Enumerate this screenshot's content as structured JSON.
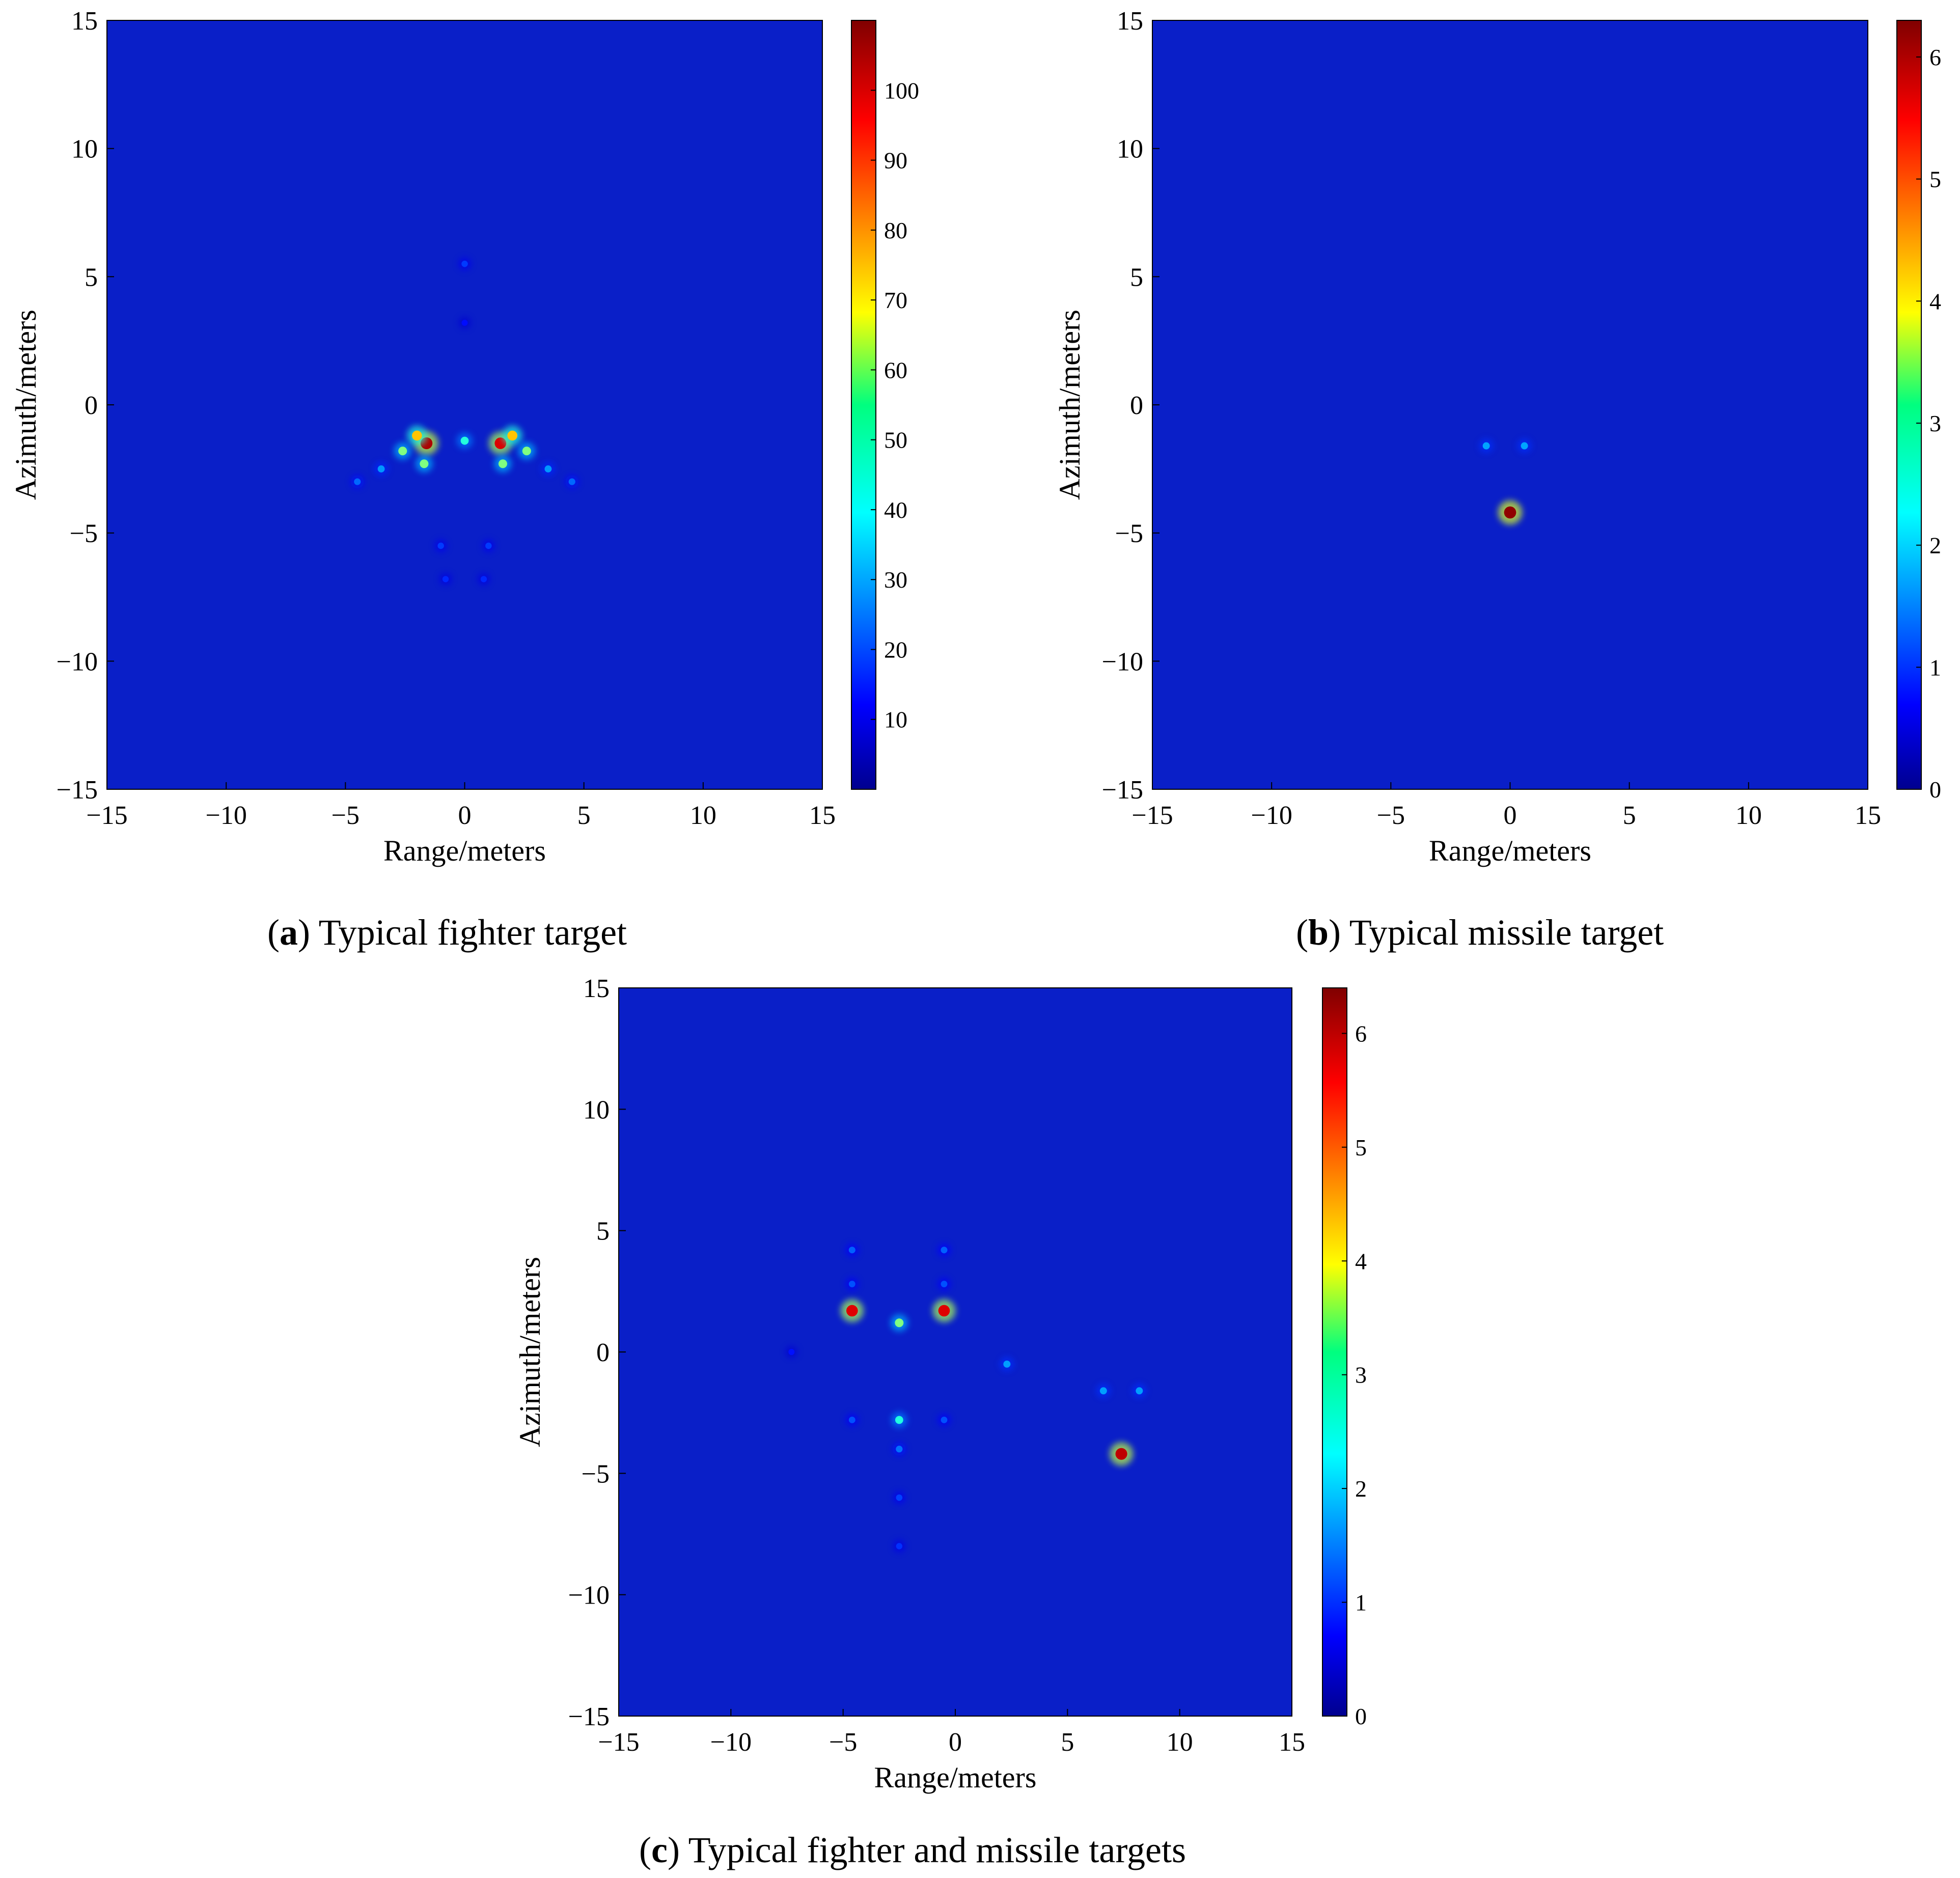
{
  "colors": {
    "background": "#ffffff",
    "image_base": "#0a1fc8",
    "colormap": "jet"
  },
  "chart_data": [
    {
      "panel": "a",
      "type": "heatmap",
      "caption_letter": "a",
      "caption_text": "Typical fighter target",
      "xlabel": "Range/meters",
      "ylabel": "Azimuth/meters",
      "xlim": [
        -15,
        15
      ],
      "ylim": [
        -15,
        15
      ],
      "xticks": [
        -15,
        -10,
        -5,
        0,
        5,
        10,
        15
      ],
      "yticks": [
        -15,
        -10,
        -5,
        0,
        5,
        10,
        15
      ],
      "xtick_labels": [
        "−15",
        "−10",
        "−5",
        "0",
        "5",
        "10",
        "15"
      ],
      "ytick_labels": [
        "−15",
        "−10",
        "−5",
        "0",
        "5",
        "10",
        "15"
      ],
      "colorbar": {
        "min": 0,
        "max": 110,
        "ticks": [
          10,
          20,
          30,
          40,
          50,
          60,
          70,
          80,
          90,
          100
        ],
        "tick_labels": [
          "10",
          "20",
          "30",
          "40",
          "50",
          "60",
          "70",
          "80",
          "90",
          "100"
        ]
      },
      "scatterers": [
        {
          "x": -1.6,
          "y": -1.5,
          "v": 105
        },
        {
          "x": 1.5,
          "y": -1.5,
          "v": 100
        },
        {
          "x": -2.0,
          "y": -1.2,
          "v": 75
        },
        {
          "x": 2.0,
          "y": -1.2,
          "v": 75
        },
        {
          "x": -2.6,
          "y": -1.8,
          "v": 55
        },
        {
          "x": 2.6,
          "y": -1.8,
          "v": 55
        },
        {
          "x": -1.7,
          "y": -2.3,
          "v": 55
        },
        {
          "x": 1.6,
          "y": -2.3,
          "v": 55
        },
        {
          "x": 0.0,
          "y": -1.4,
          "v": 45
        },
        {
          "x": -3.5,
          "y": -2.5,
          "v": 30
        },
        {
          "x": 3.5,
          "y": -2.5,
          "v": 30
        },
        {
          "x": -4.5,
          "y": -3.0,
          "v": 25
        },
        {
          "x": 4.5,
          "y": -3.0,
          "v": 25
        },
        {
          "x": 0.0,
          "y": 5.5,
          "v": 20
        },
        {
          "x": 0.0,
          "y": 3.2,
          "v": 15
        },
        {
          "x": -1.0,
          "y": -5.5,
          "v": 20
        },
        {
          "x": 1.0,
          "y": -5.5,
          "v": 20
        },
        {
          "x": -0.8,
          "y": -6.8,
          "v": 18
        },
        {
          "x": 0.8,
          "y": -6.8,
          "v": 18
        }
      ]
    },
    {
      "panel": "b",
      "type": "heatmap",
      "caption_letter": "b",
      "caption_text": "Typical missile target",
      "xlabel": "Range/meters",
      "ylabel": "Azimuth/meters",
      "xlim": [
        -15,
        15
      ],
      "ylim": [
        -15,
        15
      ],
      "xticks": [
        -15,
        -10,
        -5,
        0,
        5,
        10,
        15
      ],
      "yticks": [
        -15,
        -10,
        -5,
        0,
        5,
        10,
        15
      ],
      "xtick_labels": [
        "−15",
        "−10",
        "−5",
        "0",
        "5",
        "10",
        "15"
      ],
      "ytick_labels": [
        "−15",
        "−10",
        "−5",
        "0",
        "5",
        "10",
        "15"
      ],
      "colorbar": {
        "min": 0,
        "max": 6.3,
        "ticks": [
          0,
          1,
          2,
          3,
          4,
          5,
          6
        ],
        "tick_labels": [
          "0",
          "1",
          "2",
          "3",
          "4",
          "5",
          "6"
        ]
      },
      "scatterers": [
        {
          "x": 0.0,
          "y": -4.2,
          "v": 6.2
        },
        {
          "x": -1.0,
          "y": -1.6,
          "v": 1.8
        },
        {
          "x": 0.6,
          "y": -1.6,
          "v": 1.8
        }
      ]
    },
    {
      "panel": "c",
      "type": "heatmap",
      "caption_letter": "c",
      "caption_text": "Typical fighter and missile targets",
      "xlabel": "Range/meters",
      "ylabel": "Azimuth/meters",
      "xlim": [
        -15,
        15
      ],
      "ylim": [
        -15,
        15
      ],
      "xticks": [
        -15,
        -10,
        -5,
        0,
        5,
        10,
        15
      ],
      "yticks": [
        -15,
        -10,
        -5,
        0,
        5,
        10,
        15
      ],
      "xtick_labels": [
        "−15",
        "−10",
        "−5",
        "0",
        "5",
        "10",
        "15"
      ],
      "ytick_labels": [
        "−15",
        "−10",
        "−5",
        "0",
        "5",
        "10",
        "15"
      ],
      "colorbar": {
        "min": 0,
        "max": 6.4,
        "ticks": [
          0,
          1,
          2,
          3,
          4,
          5,
          6
        ],
        "tick_labels": [
          "0",
          "1",
          "2",
          "3",
          "4",
          "5",
          "6"
        ]
      },
      "scatterers": [
        {
          "x": -4.6,
          "y": 1.7,
          "v": 5.8
        },
        {
          "x": -0.5,
          "y": 1.7,
          "v": 5.8
        },
        {
          "x": -2.5,
          "y": 1.2,
          "v": 3.2
        },
        {
          "x": 7.4,
          "y": -4.2,
          "v": 6.0
        },
        {
          "x": 6.6,
          "y": -1.6,
          "v": 1.8
        },
        {
          "x": 8.2,
          "y": -1.6,
          "v": 1.8
        },
        {
          "x": -2.5,
          "y": -2.8,
          "v": 2.6
        },
        {
          "x": -2.5,
          "y": -4.0,
          "v": 1.5
        },
        {
          "x": -2.5,
          "y": -6.0,
          "v": 1.2
        },
        {
          "x": -2.5,
          "y": -8.0,
          "v": 1.1
        },
        {
          "x": 2.3,
          "y": -0.5,
          "v": 1.8
        },
        {
          "x": -4.6,
          "y": 4.2,
          "v": 1.4
        },
        {
          "x": -0.5,
          "y": 4.2,
          "v": 1.4
        },
        {
          "x": -4.6,
          "y": 2.8,
          "v": 1.3
        },
        {
          "x": -0.5,
          "y": 2.8,
          "v": 1.3
        },
        {
          "x": -4.6,
          "y": -2.8,
          "v": 1.3
        },
        {
          "x": -0.5,
          "y": -2.8,
          "v": 1.3
        },
        {
          "x": -7.3,
          "y": 0.0,
          "v": 0.9
        }
      ]
    }
  ]
}
